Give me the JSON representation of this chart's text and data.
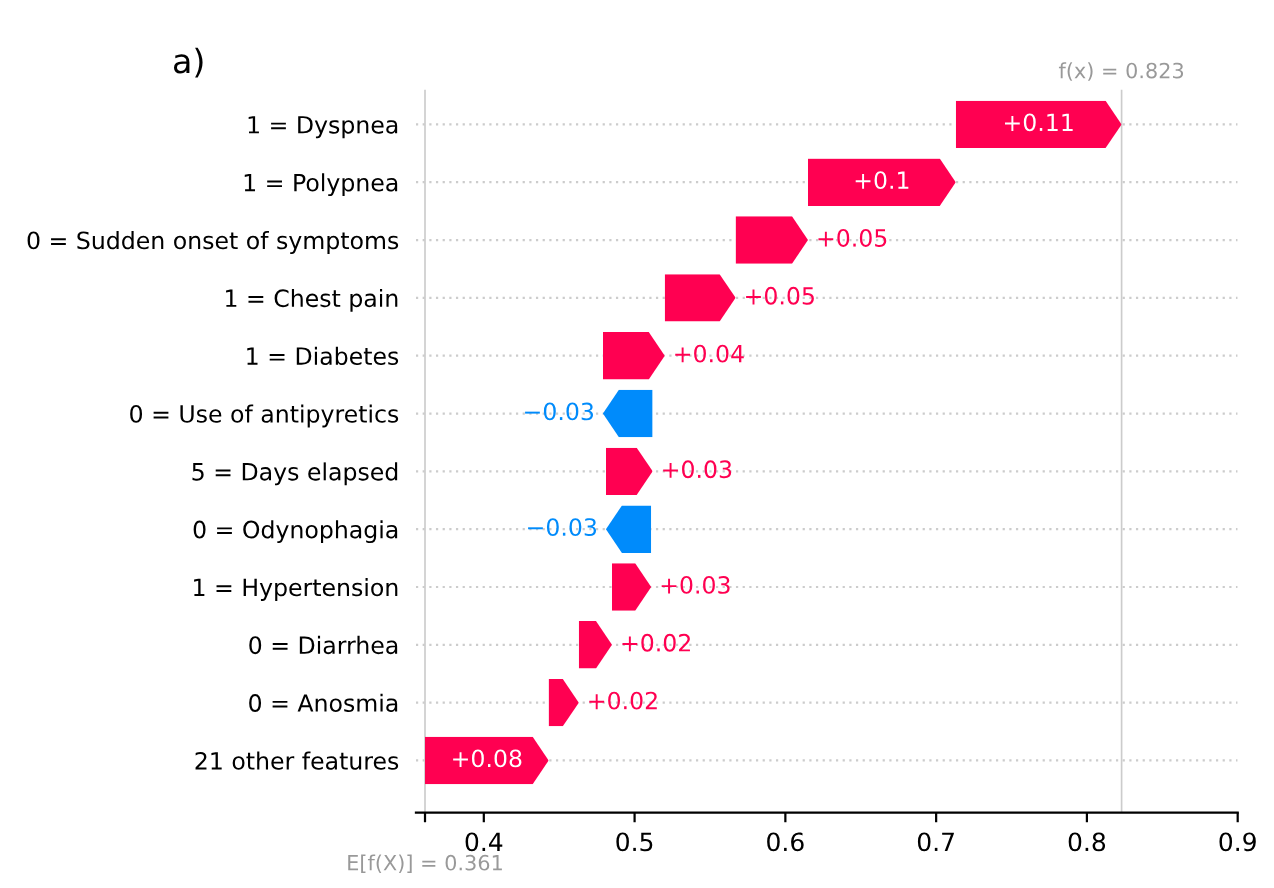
{
  "chart_data": {
    "type": "bar",
    "orientation": "horizontal",
    "title": "a)",
    "categories": [
      "1 = Dyspnea",
      "1 = Polypnea",
      "0 = Sudden onset of symptoms",
      "1 = Chest pain",
      "1 = Diabetes",
      "0 = Use of antipyretics",
      "5 = Days elapsed",
      "0 = Odynophagia",
      "1 = Hypertension",
      "0 = Diarrhea",
      "0 = Anosmia",
      "21 other features"
    ],
    "base": [
      0.713,
      0.615,
      0.567,
      0.52,
      0.479,
      0.512,
      0.481,
      0.511,
      0.485,
      0.463,
      0.443,
      0.361
    ],
    "values": [
      0.11,
      0.098,
      0.048,
      0.047,
      0.041,
      -0.033,
      0.031,
      -0.03,
      0.026,
      0.022,
      0.02,
      0.082
    ],
    "value_labels": [
      "+0.11",
      "+0.1",
      "+0.05",
      "+0.05",
      "+0.04",
      "−0.03",
      "+0.03",
      "−0.03",
      "+0.03",
      "+0.02",
      "+0.02",
      "+0.08"
    ],
    "colors": [
      "#ff0051",
      "#ff0051",
      "#ff0051",
      "#ff0051",
      "#ff0051",
      "#008bfb",
      "#ff0051",
      "#008bfb",
      "#ff0051",
      "#ff0051",
      "#ff0051",
      "#ff0051"
    ],
    "xlim": [
      0.355,
      0.9
    ],
    "xticks": [
      {
        "value": 0.361,
        "label": null
      },
      0.4,
      0.5,
      0.6,
      0.7,
      0.8,
      0.9
    ],
    "ref_lines": [
      {
        "axis": "x",
        "value": 0.823,
        "label": "f(x) = 0.823",
        "color": "#cccccc"
      },
      {
        "axis": "x",
        "value": 0.361,
        "label": "E[f(X)] = 0.361",
        "color": "#cccccc"
      }
    ],
    "grid": "y"
  }
}
